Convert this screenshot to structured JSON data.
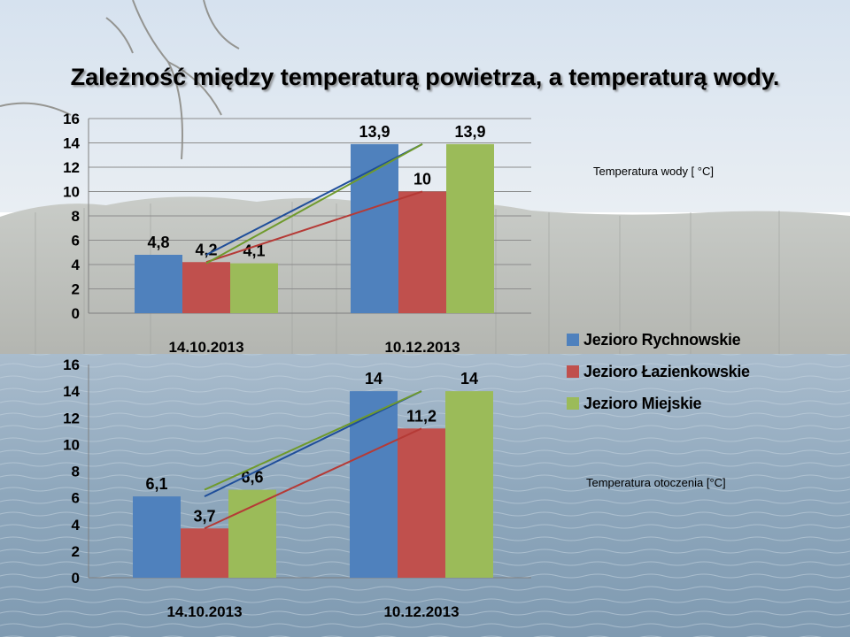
{
  "title": "Zależność między temperaturą powietrza, a temperaturą wody.",
  "colors": {
    "Jezioro Rychnowskie": "#4f81bd",
    "Jezioro Łazienkowskie": "#c0504d",
    "Jezioro Miejskie": "#9bbb59",
    "trend_Jezioro Rychnowskie": "#1f4e9a",
    "trend_Jezioro Łazienkowskie": "#b53a36",
    "trend_Jezioro Miejskie": "#6f9a2c"
  },
  "legend": {
    "placement": "right",
    "items": [
      "Jezioro Rychnowskie",
      "Jezioro Łazienkowskie",
      "Jezioro Miejskie"
    ]
  },
  "captions": {
    "water": "Temperatura wody [ °C]",
    "air": "Temperatura otoczenia [°C]"
  },
  "chart_data": [
    {
      "type": "bar",
      "title": "",
      "caption": "Temperatura wody [ °C]",
      "categories": [
        "14.10.2013",
        "10.12.2013"
      ],
      "ylim": [
        0,
        16
      ],
      "yticks": [
        0,
        2,
        4,
        6,
        8,
        10,
        12,
        14,
        16
      ],
      "grid": true,
      "trendlines": true,
      "series": [
        {
          "name": "Jezioro Rychnowskie",
          "values": [
            4.8,
            13.9
          ],
          "labels": [
            "4,8",
            "13,9"
          ]
        },
        {
          "name": "Jezioro Łazienkowskie",
          "values": [
            4.2,
            10
          ],
          "labels": [
            "4,2",
            "10"
          ]
        },
        {
          "name": "Jezioro Miejskie",
          "values": [
            4.1,
            13.9
          ],
          "labels": [
            "4,1",
            "13,9"
          ]
        }
      ]
    },
    {
      "type": "bar",
      "title": "",
      "caption": "Temperatura otoczenia [°C]",
      "categories": [
        "14.10.2013",
        "10.12.2013"
      ],
      "ylim": [
        0,
        16
      ],
      "yticks": [
        0,
        2,
        4,
        6,
        8,
        10,
        12,
        14,
        16
      ],
      "grid": false,
      "trendlines": true,
      "series": [
        {
          "name": "Jezioro Rychnowskie",
          "values": [
            6.1,
            14
          ],
          "labels": [
            "6,1",
            "14"
          ]
        },
        {
          "name": "Jezioro Łazienkowskie",
          "values": [
            3.7,
            11.2
          ],
          "labels": [
            "3,7",
            "11,2"
          ]
        },
        {
          "name": "Jezioro Miejskie",
          "values": [
            6.6,
            14
          ],
          "labels": [
            "6,6",
            "14"
          ]
        }
      ]
    }
  ]
}
